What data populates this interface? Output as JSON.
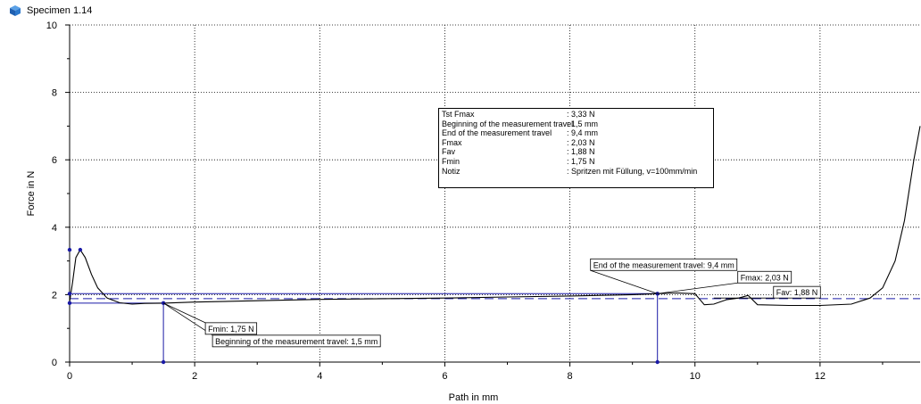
{
  "header": {
    "specimen": "Specimen 1.14",
    "icon": "cube-icon"
  },
  "info_box": [
    {
      "label": "Tst Fmax",
      "value": ": 3,33  N"
    },
    {
      "label": "Beginning of the measurement travel",
      "value": ": 1,5  mm"
    },
    {
      "label": "End of the measurement travel",
      "value": ": 9,4  mm"
    },
    {
      "label": "Fmax",
      "value": ": 2,03  N"
    },
    {
      "label": "Fav",
      "value": ": 1,88  N"
    },
    {
      "label": "Fmin",
      "value": ": 1,75  N"
    },
    {
      "label": "Notiz",
      "value": ": Spritzen mit  Füllung,  v=100mm/min"
    }
  ],
  "chart_data": {
    "type": "line",
    "xlabel": "Path in mm",
    "ylabel": "Force in N",
    "xlim": [
      0,
      13.6
    ],
    "ylim": [
      0,
      10
    ],
    "xticks": [
      0,
      2,
      4,
      6,
      8,
      10,
      12
    ],
    "yticks": [
      0,
      2,
      4,
      6,
      8,
      10
    ],
    "grid": true,
    "colors": {
      "curve": "#000000",
      "markers": "#1a1aa6",
      "refline": "#1a1aa6"
    },
    "series": [
      {
        "x": [
          0,
          0.05,
          0.1,
          0.17,
          0.25,
          0.35,
          0.45,
          0.6,
          0.8,
          1.0,
          1.2,
          1.5,
          2,
          3,
          4,
          5,
          6,
          7,
          8,
          9,
          9.4,
          9.7,
          10.0,
          10.15,
          10.3,
          10.5,
          10.7,
          10.85,
          11.0,
          11.5,
          12,
          12.5,
          12.8,
          13.0,
          13.2,
          13.35,
          13.5,
          13.6
        ],
        "y": [
          1.78,
          2.4,
          3.1,
          3.33,
          3.1,
          2.6,
          2.2,
          1.9,
          1.76,
          1.72,
          1.74,
          1.75,
          1.78,
          1.82,
          1.86,
          1.88,
          1.9,
          1.93,
          1.96,
          2.0,
          2.03,
          2.05,
          2.03,
          1.7,
          1.72,
          1.85,
          1.9,
          1.98,
          1.7,
          1.68,
          1.68,
          1.72,
          1.9,
          2.2,
          3.0,
          4.2,
          6.0,
          7.0
        ]
      }
    ],
    "markers": [
      {
        "x": 0,
        "y": 3.33
      },
      {
        "x": 0.17,
        "y": 3.33
      },
      {
        "x": 0,
        "y": 2.03
      },
      {
        "x": 0,
        "y": 1.75
      },
      {
        "x": 1.5,
        "y": 1.75
      },
      {
        "x": 1.5,
        "y": 0
      },
      {
        "x": 9.4,
        "y": 2.03
      },
      {
        "x": 9.4,
        "y": 0
      }
    ],
    "hlines": [
      {
        "y": 1.88,
        "style": "dashed",
        "from": 0
      },
      {
        "y": 2.03,
        "style": "solid",
        "from": 0,
        "to": 9.4
      },
      {
        "y": 1.75,
        "style": "solid",
        "from": 0,
        "to": 1.5
      }
    ],
    "vlines": [
      {
        "x": 1.5,
        "from": 0,
        "to": 1.75
      },
      {
        "x": 9.4,
        "from": 0,
        "to": 2.03
      }
    ],
    "annotations": [
      {
        "text": "Beginning of the measurement travel: 1,5 mm",
        "at": [
          1.5,
          1.75
        ]
      },
      {
        "text": "Fmin: 1,75 N",
        "at": [
          1.5,
          1.75
        ]
      },
      {
        "text": "End of the measurement travel: 9,4 mm",
        "at": [
          9.4,
          2.03
        ]
      },
      {
        "text": "Fmax: 2,03 N",
        "at": [
          9.4,
          2.03
        ]
      },
      {
        "text": "Fav: 1,88 N",
        "at": [
          10.3,
          1.9
        ]
      }
    ]
  }
}
